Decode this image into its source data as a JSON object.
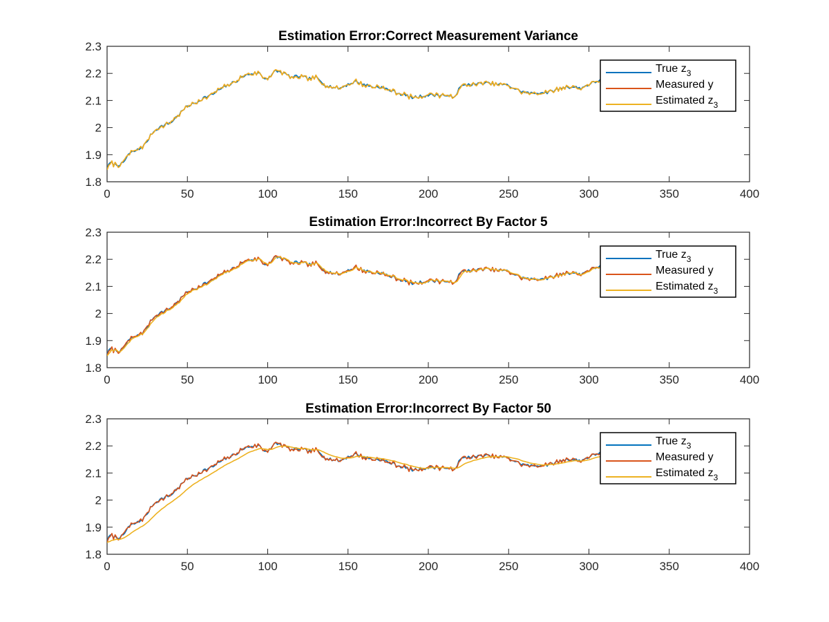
{
  "colors": {
    "true_z3": "#0072BD",
    "measured_y": "#D95319",
    "estimated_z3": "#EDB120"
  },
  "chart_data": [
    {
      "type": "line",
      "title": "Estimation Error:Correct Measurement Variance",
      "xlabel": "",
      "ylabel": "",
      "xlim": [
        0,
        400
      ],
      "ylim": [
        1.8,
        2.3
      ],
      "xticks": [
        "0",
        "50",
        "100",
        "150",
        "200",
        "250",
        "300",
        "350",
        "400"
      ],
      "yticks": [
        "1.8",
        "1.9",
        "2",
        "2.1",
        "2.2",
        "2.3"
      ],
      "legend_position": "top-right",
      "legend": [
        {
          "label": "True z",
          "sub": "3"
        },
        {
          "label": "Measured y",
          "sub": ""
        },
        {
          "label": "Estimated z",
          "sub": "3"
        }
      ],
      "estimate_smoothing": 1.0
    },
    {
      "type": "line",
      "title": "Estimation Error:Incorrect By Factor 5",
      "xlabel": "",
      "ylabel": "",
      "xlim": [
        0,
        400
      ],
      "ylim": [
        1.8,
        2.3
      ],
      "xticks": [
        "0",
        "50",
        "100",
        "150",
        "200",
        "250",
        "300",
        "350",
        "400"
      ],
      "yticks": [
        "1.8",
        "1.9",
        "2",
        "2.1",
        "2.2",
        "2.3"
      ],
      "legend_position": "top-right",
      "legend": [
        {
          "label": "True z",
          "sub": "3"
        },
        {
          "label": "Measured y",
          "sub": ""
        },
        {
          "label": "Estimated z",
          "sub": "3"
        }
      ],
      "estimate_smoothing": 0.45
    },
    {
      "type": "line",
      "title": "Estimation Error:Incorrect By Factor 50",
      "xlabel": "",
      "ylabel": "",
      "xlim": [
        0,
        400
      ],
      "ylim": [
        1.8,
        2.3
      ],
      "xticks": [
        "0",
        "50",
        "100",
        "150",
        "200",
        "250",
        "300",
        "350",
        "400"
      ],
      "yticks": [
        "1.8",
        "1.9",
        "2",
        "2.1",
        "2.2",
        "2.3"
      ],
      "legend_position": "top-right",
      "legend": [
        {
          "label": "True z",
          "sub": "3"
        },
        {
          "label": "Measured y",
          "sub": ""
        },
        {
          "label": "Estimated z",
          "sub": "3"
        }
      ],
      "estimate_smoothing": 0.12
    }
  ],
  "series_x": {
    "start": 0,
    "end": 307,
    "step": 1
  },
  "true_z3_keypoints": [
    [
      0,
      1.85
    ],
    [
      2,
      1.87
    ],
    [
      4,
      1.866
    ],
    [
      6,
      1.862
    ],
    [
      8,
      1.865
    ],
    [
      10,
      1.866
    ],
    [
      13,
      1.9
    ],
    [
      16,
      1.91
    ],
    [
      20,
      1.92
    ],
    [
      24,
      1.94
    ],
    [
      28,
      1.98
    ],
    [
      32,
      2.0
    ],
    [
      36,
      2.01
    ],
    [
      40,
      2.02
    ],
    [
      45,
      2.05
    ],
    [
      50,
      2.08
    ],
    [
      55,
      2.09
    ],
    [
      60,
      2.11
    ],
    [
      65,
      2.12
    ],
    [
      70,
      2.14
    ],
    [
      75,
      2.155
    ],
    [
      80,
      2.17
    ],
    [
      85,
      2.19
    ],
    [
      90,
      2.2
    ],
    [
      95,
      2.2
    ],
    [
      98,
      2.18
    ],
    [
      102,
      2.19
    ],
    [
      105,
      2.21
    ],
    [
      110,
      2.2
    ],
    [
      115,
      2.185
    ],
    [
      120,
      2.19
    ],
    [
      125,
      2.18
    ],
    [
      130,
      2.185
    ],
    [
      135,
      2.16
    ],
    [
      140,
      2.15
    ],
    [
      145,
      2.145
    ],
    [
      150,
      2.16
    ],
    [
      155,
      2.17
    ],
    [
      160,
      2.16
    ],
    [
      165,
      2.15
    ],
    [
      170,
      2.15
    ],
    [
      175,
      2.14
    ],
    [
      180,
      2.13
    ],
    [
      185,
      2.12
    ],
    [
      190,
      2.11
    ],
    [
      195,
      2.115
    ],
    [
      200,
      2.12
    ],
    [
      205,
      2.12
    ],
    [
      210,
      2.12
    ],
    [
      215,
      2.11
    ],
    [
      218,
      2.13
    ],
    [
      220,
      2.15
    ],
    [
      225,
      2.16
    ],
    [
      230,
      2.16
    ],
    [
      235,
      2.165
    ],
    [
      240,
      2.16
    ],
    [
      245,
      2.16
    ],
    [
      250,
      2.155
    ],
    [
      255,
      2.14
    ],
    [
      260,
      2.13
    ],
    [
      265,
      2.125
    ],
    [
      270,
      2.13
    ],
    [
      275,
      2.13
    ],
    [
      280,
      2.14
    ],
    [
      285,
      2.15
    ],
    [
      290,
      2.15
    ],
    [
      295,
      2.145
    ],
    [
      300,
      2.16
    ],
    [
      305,
      2.17
    ],
    [
      307,
      2.18
    ]
  ]
}
